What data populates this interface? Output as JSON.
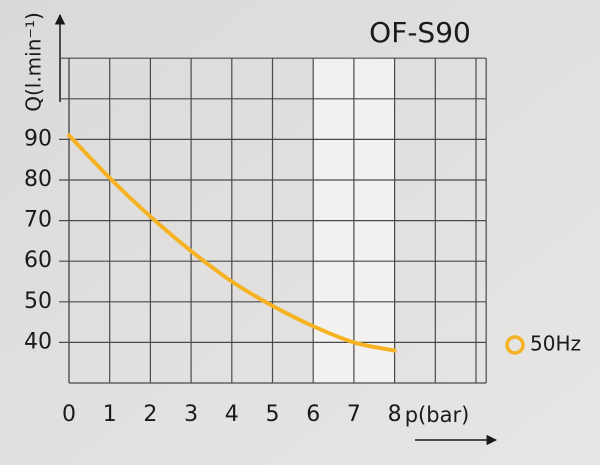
{
  "chart_data": {
    "type": "line",
    "title": "OF-S90",
    "x_label": "p(bar)",
    "y_label": "Q(l.min⁻¹)",
    "x": [
      0,
      1,
      2,
      3,
      4,
      5,
      6,
      7,
      8
    ],
    "series": [
      {
        "name": "50Hz",
        "color": "#f5b324",
        "values": [
          91,
          80.5,
          71,
          62.5,
          55,
          49,
          44,
          40,
          38
        ]
      }
    ],
    "xlim": [
      0,
      10.25
    ],
    "xticks": [
      0,
      1,
      2,
      3,
      4,
      5,
      6,
      7,
      8
    ],
    "xgrid": [
      9,
      10
    ],
    "ylim": [
      30,
      110
    ],
    "yticks": [
      40,
      50,
      60,
      70,
      80,
      90
    ],
    "ygrid": [
      100
    ],
    "shaded_x": [
      6,
      8
    ],
    "grid": true
  }
}
